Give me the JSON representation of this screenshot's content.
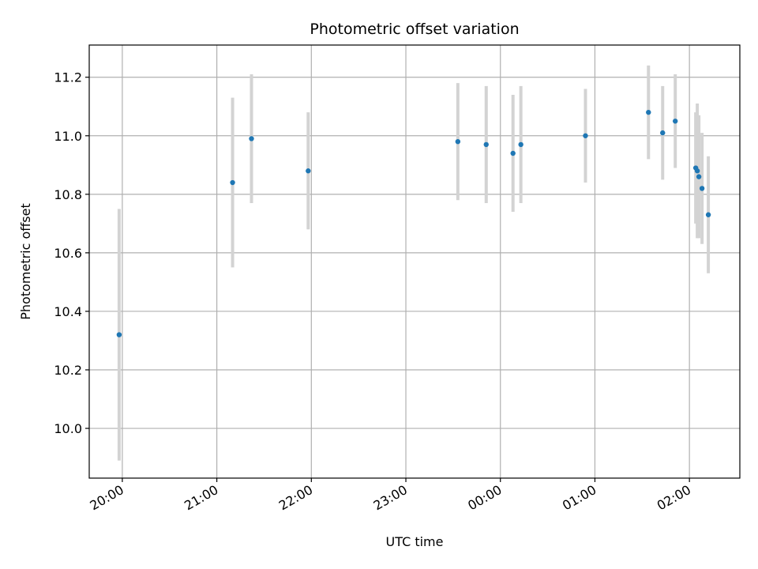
{
  "chart_data": {
    "type": "scatter",
    "title": "Photometric offset variation",
    "xlabel": "UTC time",
    "ylabel": "Photometric offset",
    "grid": true,
    "x_unit": "UTC time (HH:MM), observations spanning midnight",
    "x_ticks": [
      "20:00",
      "21:00",
      "22:00",
      "23:00",
      "00:00",
      "01:00",
      "02:00"
    ],
    "y_ticks": [
      "10.0",
      "10.2",
      "10.4",
      "10.6",
      "10.8",
      "11.0",
      "11.2"
    ],
    "ylim": [
      9.83,
      11.31
    ],
    "xlim": [
      "19:39",
      "02:32"
    ],
    "colors": {
      "marker": "#1f77b4",
      "errorbar": "#d3d3d3",
      "grid": "#b0b0b0"
    },
    "points": [
      {
        "x": "19:58",
        "y": 10.32,
        "err": 0.43
      },
      {
        "x": "21:10",
        "y": 10.84,
        "err": 0.29
      },
      {
        "x": "21:22",
        "y": 10.99,
        "err": 0.22
      },
      {
        "x": "21:58",
        "y": 10.88,
        "err": 0.2
      },
      {
        "x": "23:33",
        "y": 10.98,
        "err": 0.2
      },
      {
        "x": "23:51",
        "y": 10.97,
        "err": 0.2
      },
      {
        "x": "00:08",
        "y": 10.94,
        "err": 0.2
      },
      {
        "x": "00:13",
        "y": 10.97,
        "err": 0.2
      },
      {
        "x": "00:54",
        "y": 11.0,
        "err": 0.16
      },
      {
        "x": "01:34",
        "y": 11.08,
        "err": 0.16
      },
      {
        "x": "01:43",
        "y": 11.01,
        "err": 0.16
      },
      {
        "x": "01:51",
        "y": 11.05,
        "err": 0.16
      },
      {
        "x": "02:04",
        "y": 10.89,
        "err": 0.19
      },
      {
        "x": "02:05",
        "y": 10.88,
        "err": 0.23
      },
      {
        "x": "02:06",
        "y": 10.86,
        "err": 0.21
      },
      {
        "x": "02:08",
        "y": 10.82,
        "err": 0.19
      },
      {
        "x": "02:12",
        "y": 10.73,
        "err": 0.2
      }
    ]
  }
}
